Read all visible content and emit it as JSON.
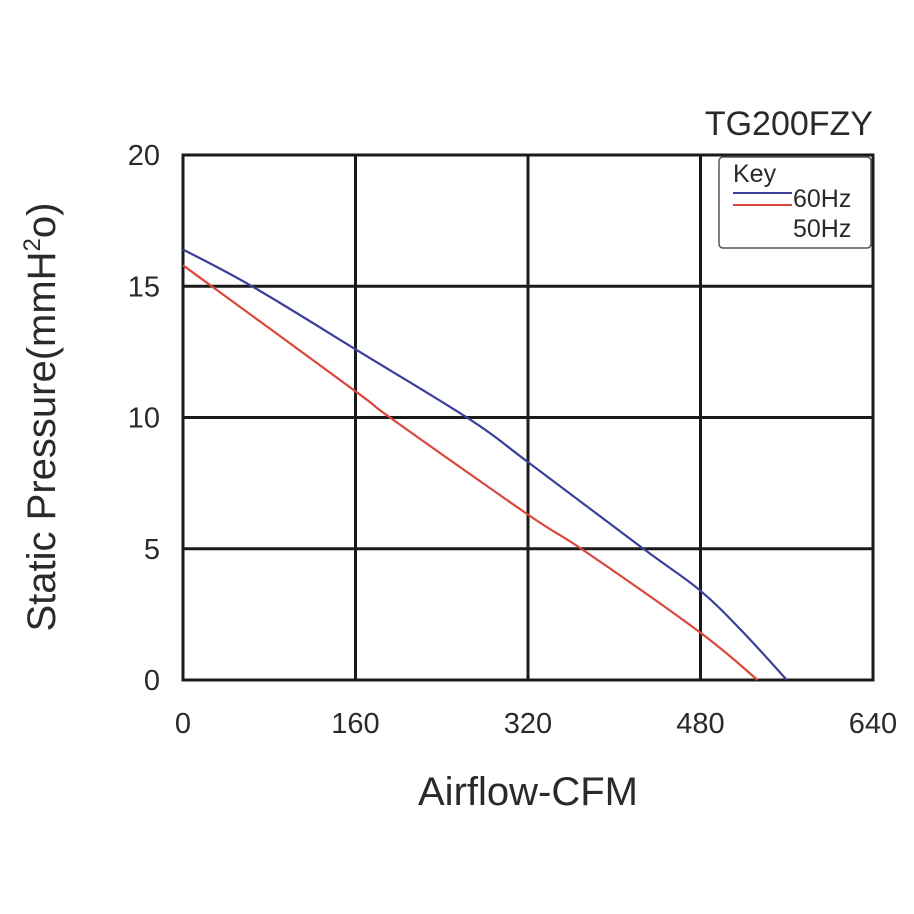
{
  "chart_data": {
    "type": "line",
    "title": "TG200FZY",
    "xlabel": "Airflow-CFM",
    "ylabel_main": "Static Pressure(mmH",
    "ylabel_sup1": "2",
    "ylabel_mid": "o",
    "ylabel_close": ")",
    "xlim": [
      0,
      640
    ],
    "ylim": [
      0,
      20
    ],
    "x_ticks": [
      "0",
      "160",
      "320",
      "480",
      "640"
    ],
    "y_ticks": [
      "0",
      "5",
      "10",
      "15",
      "20"
    ],
    "grid": true,
    "legend": {
      "title": "Key",
      "placement": "top-right",
      "entries": [
        "60Hz",
        "50Hz"
      ]
    },
    "series": [
      {
        "name": "60Hz",
        "color": "#3a3f9a",
        "x": [
          0,
          64,
          160,
          267,
          320,
          427,
          480,
          520,
          560
        ],
        "y": [
          16.4,
          15.0,
          12.6,
          9.9,
          8.3,
          5.0,
          3.4,
          1.8,
          0
        ]
      },
      {
        "name": "50Hz",
        "color": "#d9463a",
        "x": [
          0,
          160,
          192,
          320,
          373,
          480,
          533
        ],
        "y": [
          15.8,
          11.0,
          10.0,
          6.3,
          4.9,
          1.8,
          0
        ]
      }
    ]
  }
}
